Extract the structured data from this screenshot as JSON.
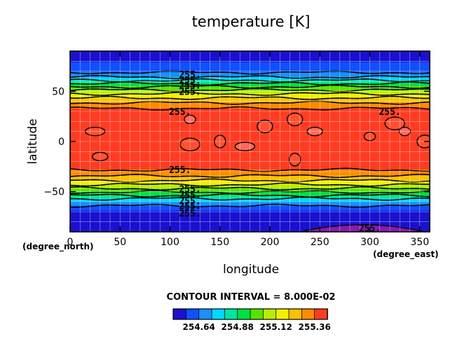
{
  "chart_data": {
    "type": "heatmap",
    "title": "temperature [K]",
    "xlabel": "longitude",
    "ylabel": "latitude",
    "x_unit_label": "(degree_east)",
    "y_unit_label": "(degree_north)",
    "xlim": [
      0,
      360
    ],
    "ylim": [
      -90,
      90
    ],
    "x_ticks": [
      "0",
      "50",
      "100",
      "150",
      "200",
      "250",
      "300",
      "350"
    ],
    "x_tick_values": [
      0,
      50,
      100,
      150,
      200,
      250,
      300,
      350
    ],
    "y_ticks": [
      "50",
      "0",
      "−50"
    ],
    "y_tick_values": [
      50,
      0,
      -50
    ],
    "grid": true,
    "contour_interval_text": "CONTOUR INTERVAL = 8.000E-02",
    "contour_label": "255.",
    "colorbar": {
      "tick_labels": [
        "254.64",
        "254.88",
        "255.12",
        "255.36"
      ],
      "tick_values": [
        254.64,
        254.88,
        255.12,
        255.36
      ],
      "levels": [
        254.48,
        254.56,
        254.64,
        254.72,
        254.8,
        254.88,
        254.96,
        255.04,
        255.12,
        255.2,
        255.28,
        255.36,
        255.44
      ],
      "colors": [
        "#1a10d0",
        "#1050ff",
        "#1890ff",
        "#00d8ff",
        "#00e6a0",
        "#00e040",
        "#58e400",
        "#b8ee00",
        "#f0f000",
        "#ffc000",
        "#ff8c00",
        "#ff3c22"
      ]
    },
    "zonal_profile": {
      "latitudes": [
        90,
        80,
        70,
        65,
        60,
        55,
        50,
        45,
        40,
        35,
        30,
        25,
        20,
        10,
        0,
        -10,
        -20,
        -25,
        -30,
        -35,
        -40,
        -45,
        -50,
        -55,
        -60,
        -65,
        -70,
        -75,
        -80,
        -85,
        -90
      ],
      "values": [
        254.52,
        254.55,
        254.62,
        254.7,
        254.82,
        254.95,
        255.07,
        255.17,
        255.26,
        255.33,
        255.4,
        255.42,
        255.43,
        255.44,
        255.44,
        255.43,
        255.42,
        255.4,
        255.34,
        255.27,
        255.18,
        255.08,
        254.97,
        254.85,
        254.72,
        254.62,
        254.54,
        254.5,
        254.49,
        254.48,
        254.47
      ]
    },
    "warm_patches_lonlat": [
      [
        120,
        22
      ],
      [
        225,
        22
      ],
      [
        25,
        10
      ],
      [
        150,
        0
      ],
      [
        245,
        10
      ],
      [
        325,
        18
      ],
      [
        300,
        5
      ],
      [
        355,
        0
      ],
      [
        175,
        -5
      ],
      [
        225,
        -18
      ],
      [
        30,
        -15
      ],
      [
        120,
        -3
      ],
      [
        335,
        10
      ],
      [
        195,
        15
      ]
    ],
    "polar_minimum_region": {
      "lon_range": [
        230,
        355
      ],
      "lat_range": [
        -90,
        -80
      ],
      "value": 254.4,
      "color": "#8a18b0"
    },
    "colors": {
      "axis": "#000000",
      "grid": "#ffffff"
    }
  }
}
